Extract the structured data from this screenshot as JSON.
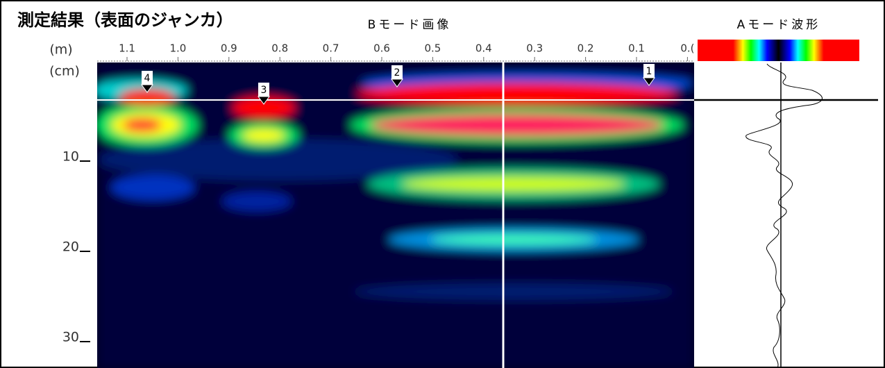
{
  "header": {
    "title": "測定結果（表面のジャンカ）"
  },
  "bmode": {
    "label": "Bモード画像",
    "x_unit": "(m)",
    "x_ticks": [
      "1.1",
      "1.0",
      "0.9",
      "0.8",
      "0.7",
      "0.6",
      "0.5",
      "0.4",
      "0.3",
      "0.2",
      "0.1",
      "0.("
    ],
    "y_unit": "(cm)",
    "y_ticks": [
      "10",
      "20",
      "30"
    ],
    "markers": [
      "4",
      "3",
      "2",
      "1"
    ]
  },
  "amode": {
    "label": "Aモード波形"
  }
}
